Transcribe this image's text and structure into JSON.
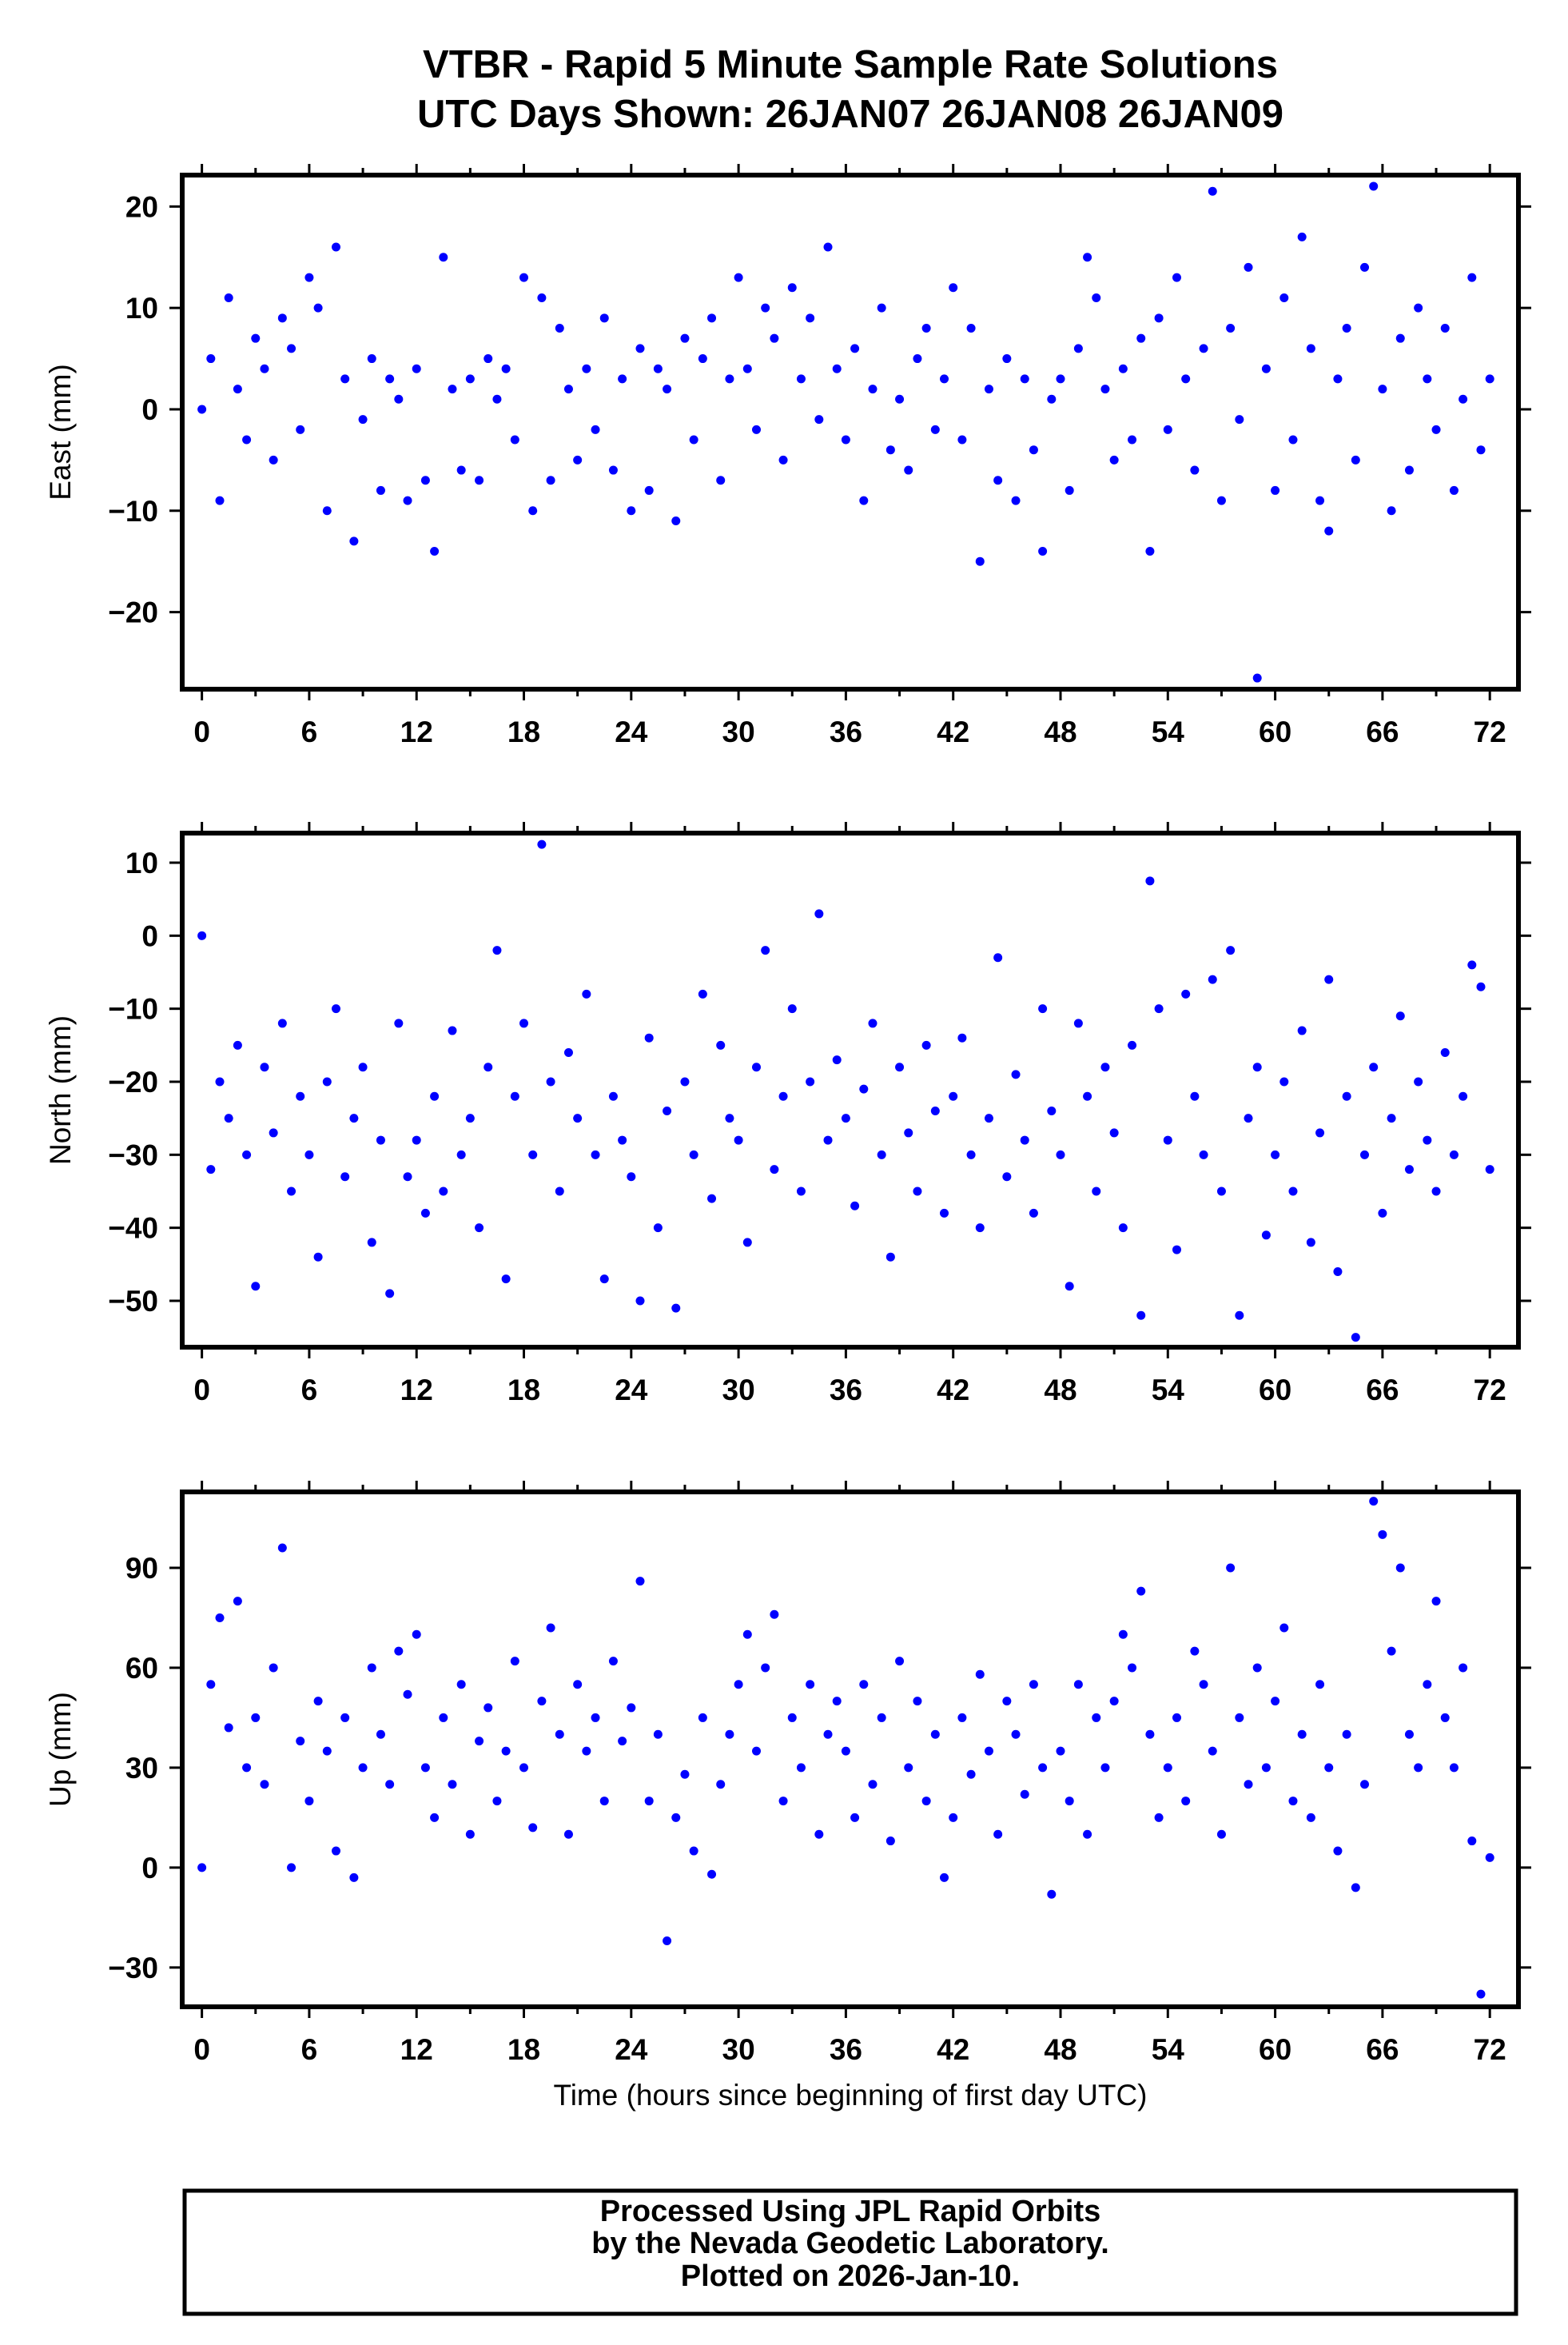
{
  "title_line1": "VTBR - Rapid 5 Minute Sample Rate Solutions",
  "title_line2": "UTC Days Shown:  26JAN07 26JAN08 26JAN09",
  "footer": {
    "line1": "Processed Using JPL Rapid Orbits",
    "line2": "by the Nevada Geodetic Laboratory.",
    "line3": "Plotted on 2026-Jan-10."
  },
  "colors": {
    "points": "#0000ff",
    "frame": "#000000"
  },
  "chart_data": [
    {
      "type": "scatter",
      "title": "",
      "xlabel": "",
      "ylabel": "East (mm)",
      "xlim": [
        -1.1,
        73.6
      ],
      "ylim": [
        -27.6,
        23.1
      ],
      "xticks": [
        0,
        6,
        12,
        18,
        24,
        30,
        36,
        42,
        48,
        54,
        60,
        66,
        72
      ],
      "yticks": [
        20,
        10,
        0,
        -10,
        -20
      ],
      "ytick_labels": [
        "20",
        "10",
        "0",
        "−10",
        "−20"
      ],
      "x0": 0,
      "dx": 0.5,
      "values": [
        0,
        5,
        -9,
        11,
        2,
        -3,
        7,
        4,
        -5,
        9,
        6,
        -2,
        13,
        10,
        -10,
        16,
        3,
        -13,
        -1,
        5,
        -8,
        3,
        1,
        -9,
        4,
        -7,
        -14,
        15,
        2,
        -6,
        3,
        -7,
        5,
        1,
        4,
        -3,
        13,
        -10,
        11,
        -7,
        8,
        2,
        -5,
        4,
        -2,
        9,
        -6,
        3,
        -10,
        6,
        -8,
        4,
        2,
        -11,
        7,
        -3,
        5,
        9,
        -7,
        3,
        13,
        4,
        -2,
        10,
        7,
        -5,
        12,
        3,
        9,
        -1,
        16,
        4,
        -3,
        6,
        -9,
        2,
        10,
        -4,
        1,
        -6,
        5,
        8,
        -2,
        3,
        12,
        -3,
        8,
        -15,
        2,
        -7,
        5,
        -9,
        3,
        -4,
        -14,
        1,
        3,
        -8,
        6,
        15,
        11,
        2,
        -5,
        4,
        -3,
        7,
        -14,
        9,
        -2,
        13,
        3,
        -6,
        6,
        21.5,
        -9,
        8,
        -1,
        14,
        -26.5,
        4,
        -8,
        11,
        -3,
        17,
        6,
        -9,
        -12,
        3,
        8,
        -5,
        14,
        22,
        2,
        -10,
        7,
        -6,
        10,
        3,
        -2,
        8,
        -8,
        1,
        13,
        -4,
        3
      ]
    },
    {
      "type": "scatter",
      "title": "",
      "xlabel": "",
      "ylabel": "North (mm)",
      "xlim": [
        -1.1,
        73.6
      ],
      "ylim": [
        -56.35,
        14.05
      ],
      "xticks": [
        0,
        6,
        12,
        18,
        24,
        30,
        36,
        42,
        48,
        54,
        60,
        66,
        72
      ],
      "yticks": [
        10,
        0,
        -10,
        -20,
        -30,
        -40,
        -50
      ],
      "ytick_labels": [
        "10",
        "0",
        "−10",
        "−20",
        "−30",
        "−40",
        "−50"
      ],
      "x0": 0,
      "dx": 0.5,
      "values": [
        0,
        -32,
        -20,
        -25,
        -15,
        -30,
        -48,
        -18,
        -27,
        -12,
        -35,
        -22,
        -30,
        -44,
        -20,
        -10,
        -33,
        -25,
        -18,
        -42,
        -28,
        -49,
        -12,
        -33,
        -28,
        -38,
        -22,
        -35,
        -13,
        -30,
        -25,
        -40,
        -18,
        -2,
        -47,
        -22,
        -12,
        -30,
        12.5,
        -20,
        -35,
        -16,
        -25,
        -8,
        -30,
        -47,
        -22,
        -28,
        -33,
        -50,
        -14,
        -40,
        -24,
        -51,
        -20,
        -30,
        -8,
        -36,
        -15,
        -25,
        -28,
        -42,
        -18,
        -2,
        -32,
        -22,
        -10,
        -35,
        -20,
        3,
        -28,
        -17,
        -25,
        -37,
        -21,
        -12,
        -30,
        -44,
        -18,
        -27,
        -35,
        -15,
        -24,
        -38,
        -22,
        -14,
        -30,
        -40,
        -25,
        -3,
        -33,
        -19,
        -28,
        -38,
        -10,
        -24,
        -30,
        -48,
        -12,
        -22,
        -35,
        -18,
        -27,
        -40,
        -15,
        -52,
        7.5,
        -10,
        -28,
        -43,
        -8,
        -22,
        -30,
        -6,
        -35,
        -2,
        -52,
        -25,
        -18,
        -41,
        -30,
        -20,
        -35,
        -13,
        -42,
        -27,
        -6,
        -46,
        -22,
        -55,
        -30,
        -18,
        -38,
        -25,
        -11,
        -32,
        -20,
        -28,
        -35,
        -16,
        -30,
        -22,
        -4,
        -7,
        -32
      ]
    },
    {
      "type": "scatter",
      "title": "",
      "xlabel": "Time (hours since beginning of first day UTC)",
      "ylabel": "Up (mm)",
      "xlim": [
        -1.1,
        73.6
      ],
      "ylim": [
        -41.8,
        112.8
      ],
      "xticks": [
        0,
        6,
        12,
        18,
        24,
        30,
        36,
        42,
        48,
        54,
        60,
        66,
        72
      ],
      "yticks": [
        90,
        60,
        30,
        0,
        -30
      ],
      "ytick_labels": [
        "90",
        "60",
        "30",
        "0",
        "−30"
      ],
      "x0": 0,
      "dx": 0.5,
      "values": [
        0,
        55,
        75,
        42,
        80,
        30,
        45,
        25,
        60,
        96,
        0,
        38,
        20,
        50,
        35,
        5,
        45,
        -3,
        30,
        60,
        40,
        25,
        65,
        52,
        70,
        30,
        15,
        45,
        25,
        55,
        10,
        38,
        48,
        20,
        35,
        62,
        30,
        12,
        50,
        72,
        40,
        10,
        55,
        35,
        45,
        20,
        62,
        38,
        48,
        86,
        20,
        40,
        -22,
        15,
        28,
        5,
        45,
        -2,
        25,
        40,
        55,
        70,
        35,
        60,
        76,
        20,
        45,
        30,
        55,
        10,
        40,
        50,
        35,
        15,
        55,
        25,
        45,
        8,
        62,
        30,
        50,
        20,
        40,
        -3,
        15,
        45,
        28,
        58,
        35,
        10,
        50,
        40,
        22,
        55,
        30,
        -8,
        35,
        20,
        55,
        10,
        45,
        30,
        50,
        70,
        60,
        83,
        40,
        15,
        30,
        45,
        20,
        65,
        55,
        35,
        10,
        90,
        45,
        25,
        60,
        30,
        50,
        72,
        20,
        40,
        15,
        55,
        30,
        5,
        40,
        -6,
        25,
        110,
        100,
        65,
        90,
        40,
        30,
        55,
        80,
        45,
        30,
        60,
        8,
        -38,
        3
      ]
    }
  ]
}
